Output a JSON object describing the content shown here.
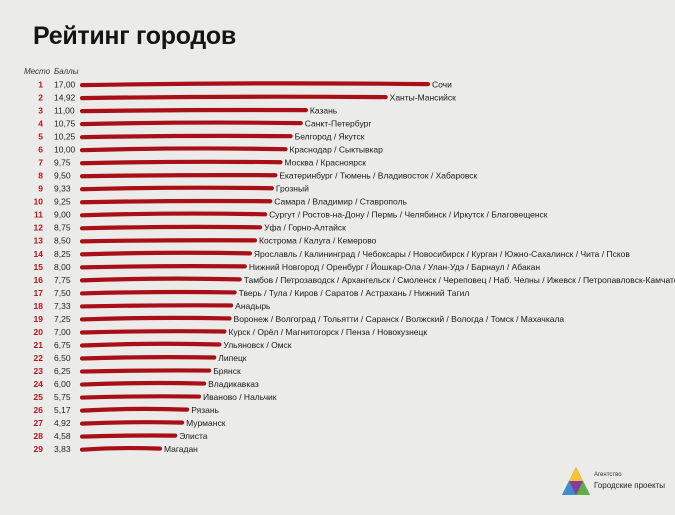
{
  "title": "Рейтинг городов",
  "headers": {
    "rank": "Место",
    "score": "Баллы"
  },
  "colors": {
    "bar": "#a90f17",
    "rank": "#b8141b",
    "background": "#ebebea"
  },
  "chart_data": {
    "type": "bar",
    "orientation": "horizontal",
    "title": "Рейтинг городов",
    "xlim": [
      0,
      17
    ],
    "rows": [
      {
        "rank": "1",
        "score": 17.0,
        "score_label": "17,00",
        "cities": "Сочи"
      },
      {
        "rank": "2",
        "score": 14.92,
        "score_label": "14,92",
        "cities": "Ханты-Мансийск"
      },
      {
        "rank": "3",
        "score": 11.0,
        "score_label": "11,00",
        "cities": "Казань"
      },
      {
        "rank": "4",
        "score": 10.75,
        "score_label": "10,75",
        "cities": "Санкт-Петербург"
      },
      {
        "rank": "5",
        "score": 10.25,
        "score_label": "10,25",
        "cities": "Белгород / Якутск"
      },
      {
        "rank": "6",
        "score": 10.0,
        "score_label": "10,00",
        "cities": "Краснодар / Сыктывкар"
      },
      {
        "rank": "7",
        "score": 9.75,
        "score_label": "9,75",
        "cities": "Москва / Красноярск"
      },
      {
        "rank": "8",
        "score": 9.5,
        "score_label": "9,50",
        "cities": "Екатеринбург / Тюмень / Владивосток / Хабаровск"
      },
      {
        "rank": "9",
        "score": 9.33,
        "score_label": "9,33",
        "cities": "Грозный"
      },
      {
        "rank": "10",
        "score": 9.25,
        "score_label": "9,25",
        "cities": "Самара / Владимир / Ставрополь"
      },
      {
        "rank": "11",
        "score": 9.0,
        "score_label": "9,00",
        "cities": "Сургут / Ростов-на-Дону / Пермь / Челябинск / Иркутск / Благовещенск"
      },
      {
        "rank": "12",
        "score": 8.75,
        "score_label": "8,75",
        "cities": "Уфа / Горно-Алтайск"
      },
      {
        "rank": "13",
        "score": 8.5,
        "score_label": "8,50",
        "cities": "Кострома / Калуга / Кемерово"
      },
      {
        "rank": "14",
        "score": 8.25,
        "score_label": "8,25",
        "cities": "Ярославль / Калининград / Чебоксары / Новосибирск / Курган / Южно-Сахалинск / Чита / Псков"
      },
      {
        "rank": "15",
        "score": 8.0,
        "score_label": "8,00",
        "cities": "Нижний Новгород / Оренбург / Йошкар-Ола / Улан-Удэ / Барнаул / Абакан"
      },
      {
        "rank": "16",
        "score": 7.75,
        "score_label": "7,75",
        "cities": "Тамбов / Петрозаводск / Архангельск / Смоленск / Череповец / Наб. Челны / Ижевск / Петропавловск-Камчатский"
      },
      {
        "rank": "17",
        "score": 7.5,
        "score_label": "7,50",
        "cities": "Тверь / Тула / Киров / Саратов / Астрахань / Нижний Тагил"
      },
      {
        "rank": "18",
        "score": 7.33,
        "score_label": "7,33",
        "cities": "Анадырь"
      },
      {
        "rank": "19",
        "score": 7.25,
        "score_label": "7,25",
        "cities": "Воронеж / Волгоград / Тольятти / Саранск / Волжский / Вологда / Томск / Махачкала"
      },
      {
        "rank": "20",
        "score": 7.0,
        "score_label": "7,00",
        "cities": "Курск / Орёл / Магнитогорск / Пенза / Новокузнецк"
      },
      {
        "rank": "21",
        "score": 6.75,
        "score_label": "6,75",
        "cities": "Ульяновск / Омск"
      },
      {
        "rank": "22",
        "score": 6.5,
        "score_label": "6,50",
        "cities": "Липецк"
      },
      {
        "rank": "23",
        "score": 6.25,
        "score_label": "6,25",
        "cities": "Брянск"
      },
      {
        "rank": "24",
        "score": 6.0,
        "score_label": "6,00",
        "cities": "Владикавказ"
      },
      {
        "rank": "25",
        "score": 5.75,
        "score_label": "5,75",
        "cities": "Иваново / Нальчик"
      },
      {
        "rank": "26",
        "score": 5.17,
        "score_label": "5,17",
        "cities": "Рязань"
      },
      {
        "rank": "27",
        "score": 4.92,
        "score_label": "4,92",
        "cities": "Мурманск"
      },
      {
        "rank": "28",
        "score": 4.58,
        "score_label": "4,58",
        "cities": "Элиста"
      },
      {
        "rank": "29",
        "score": 3.83,
        "score_label": "3,83",
        "cities": "Магадан"
      }
    ]
  },
  "logo": {
    "line1": "Агентство",
    "line2": "Городские проекты"
  }
}
